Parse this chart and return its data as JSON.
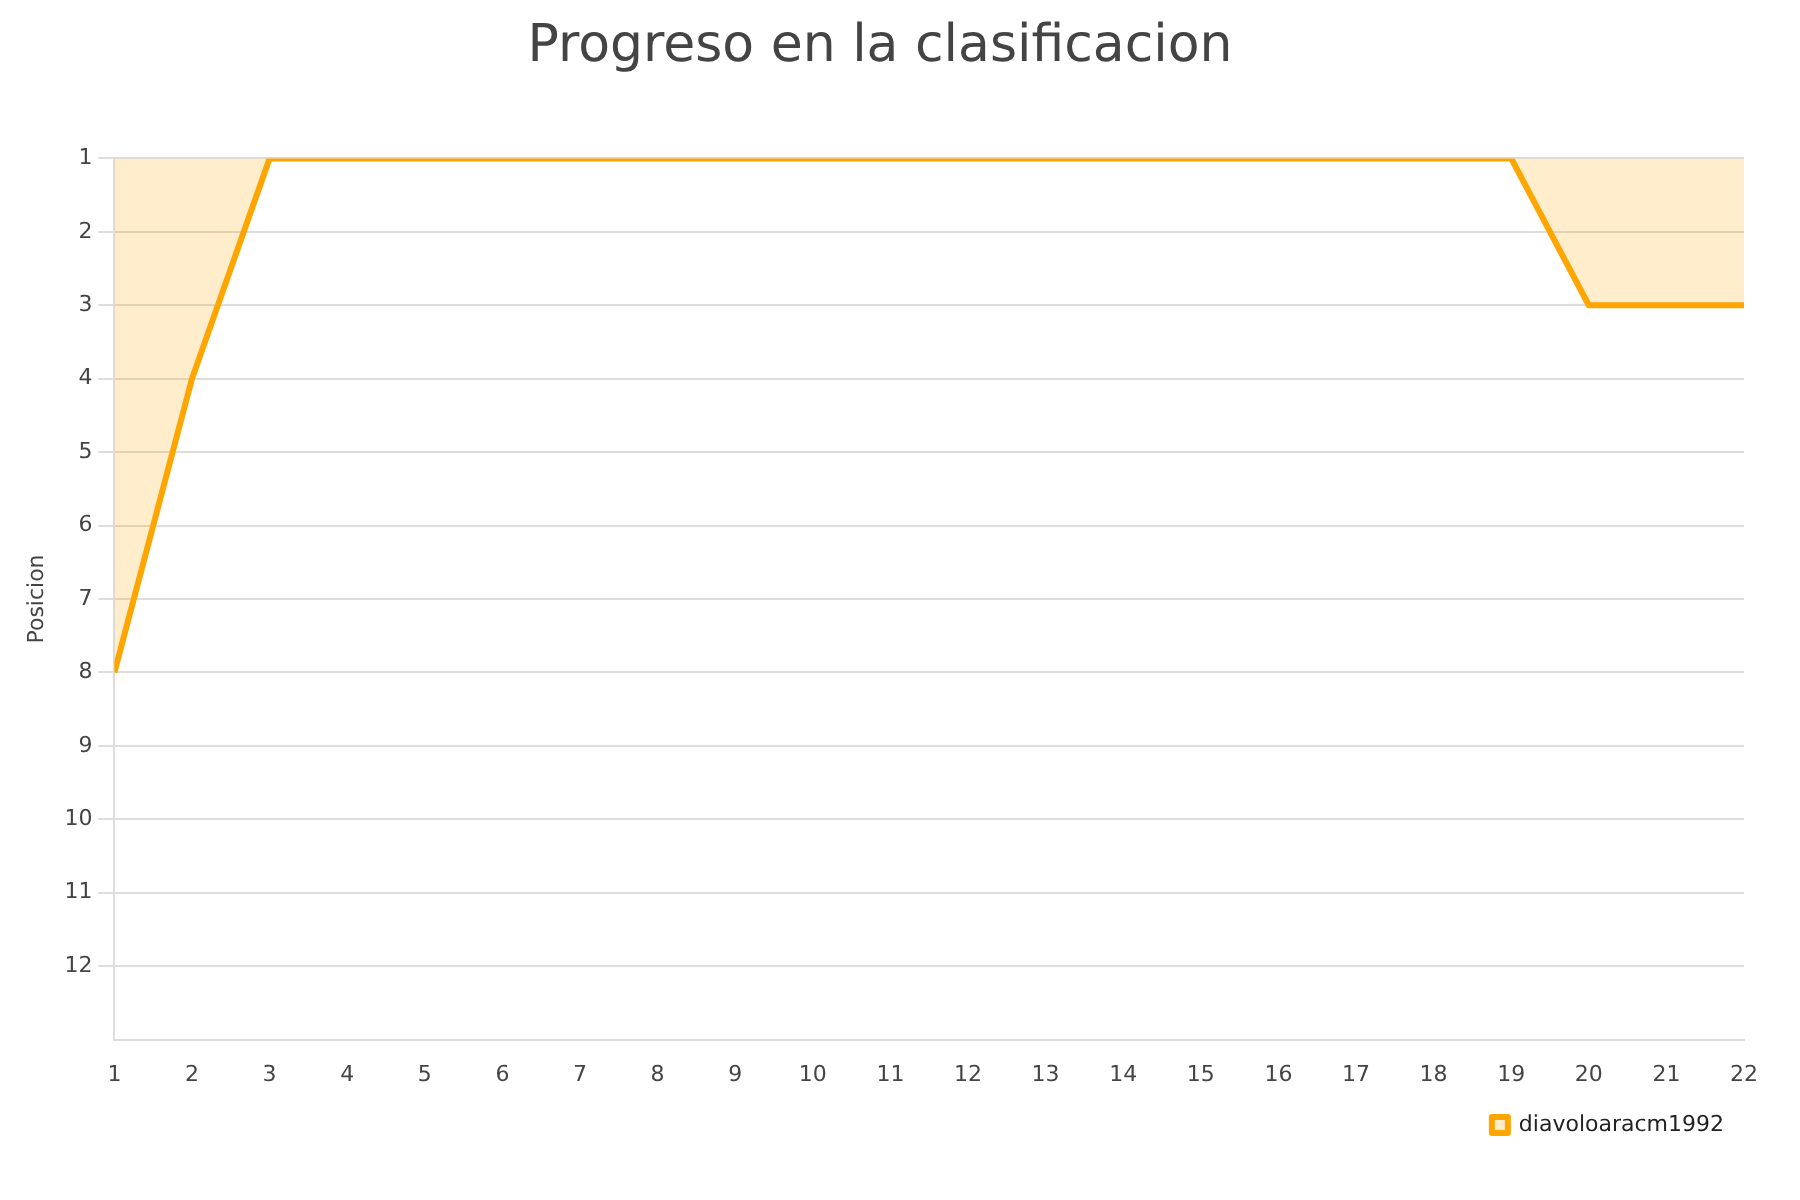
{
  "chart_data": {
    "type": "area",
    "title": "Progreso en la clasificacion",
    "ylabel": "Posicion",
    "x": [
      1,
      2,
      3,
      4,
      5,
      6,
      7,
      8,
      9,
      10,
      11,
      12,
      13,
      14,
      15,
      16,
      17,
      18,
      19,
      20,
      21,
      22
    ],
    "series": [
      {
        "name": "diavoloaracm1992",
        "color": "#ffa500",
        "values": [
          8,
          4,
          1,
          1,
          1,
          1,
          1,
          1,
          1,
          1,
          1,
          1,
          1,
          1,
          1,
          1,
          1,
          1,
          1,
          3,
          3,
          3
        ]
      }
    ],
    "xlim": [
      1,
      22
    ],
    "xticks": [
      1,
      2,
      3,
      4,
      5,
      6,
      7,
      8,
      9,
      10,
      11,
      12,
      13,
      14,
      15,
      16,
      17,
      18,
      19,
      20,
      21,
      22
    ],
    "ylim": [
      13,
      1
    ],
    "yticks": [
      1,
      2,
      3,
      4,
      5,
      6,
      7,
      8,
      9,
      10,
      11,
      12
    ],
    "grid": "y",
    "legend": "bottom right",
    "marker": "none",
    "line_style": "solid"
  }
}
